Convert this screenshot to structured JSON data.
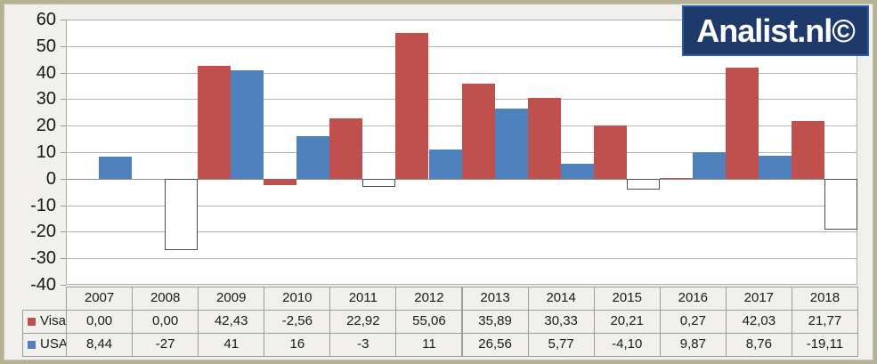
{
  "logo": {
    "text": "Analist.nl©"
  },
  "colors": {
    "visa": "#c0504d",
    "usa": "#4f81bd",
    "inverted_negative_fill": "#ffffff",
    "inverted_negative_border": "#4d4d4d",
    "logo_bg": "#1e3a6b",
    "logo_border": "#2e5ca3",
    "frame": "#b6b190",
    "background": "#f1f0ec",
    "plot_bg": "#ffffff",
    "gridline": "#b3b3b3"
  },
  "chart_data": {
    "type": "bar",
    "title": "",
    "xlabel": "",
    "ylabel": "",
    "categories": [
      "2007",
      "2008",
      "2009",
      "2010",
      "2011",
      "2012",
      "2013",
      "2014",
      "2015",
      "2016",
      "2017",
      "2018"
    ],
    "series": [
      {
        "name": "Visa",
        "color": "#c0504d",
        "values": [
          0.0,
          0.0,
          42.43,
          -2.56,
          22.92,
          55.06,
          35.89,
          30.33,
          20.21,
          0.27,
          42.03,
          21.77
        ],
        "display": [
          "0,00",
          "0,00",
          "42,43",
          "-2,56",
          "22,92",
          "55,06",
          "35,89",
          "30,33",
          "20,21",
          "0,27",
          "42,03",
          "21,77"
        ],
        "negative_style": "filled"
      },
      {
        "name": "USA",
        "color": "#4f81bd",
        "values": [
          8.44,
          -27,
          41,
          16,
          -3,
          11,
          26.56,
          5.77,
          -4.1,
          9.87,
          8.76,
          -19.11
        ],
        "display": [
          "8,44",
          "-27",
          "41",
          "16",
          "-3",
          "11",
          "26,56",
          "5,77",
          "-4,10",
          "9,87",
          "8,76",
          "-19,11"
        ],
        "negative_style": "white-inverted"
      }
    ],
    "ylim": [
      -40,
      60
    ],
    "ytick_step": 10,
    "yticks": [
      "60",
      "50",
      "40",
      "30",
      "20",
      "10",
      "0",
      "-10",
      "-20",
      "-30",
      "-40"
    ],
    "grid": true,
    "legend_position": "table-left-column",
    "data_table_shown": true
  }
}
